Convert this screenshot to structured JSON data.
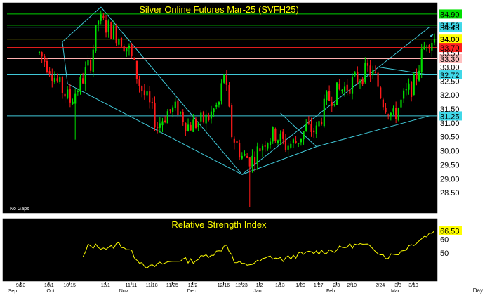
{
  "chart_data": [
    {
      "type": "candlestick",
      "title": "Silver Online Futures Mar-25 (SVFH25)",
      "note": "No Gaps",
      "ylim": [
        27.9,
        35.15
      ],
      "y_ticks": [
        "28.50",
        "29.00",
        "29.50",
        "30.00",
        "30.50",
        "31.00",
        "31.50",
        "32.00",
        "32.50",
        "33.00",
        "33.50",
        "34.00",
        "34.50"
      ],
      "x_tick_labels": [
        "9/23",
        "10/1",
        "10/15",
        "11/1",
        "11/11",
        "11/18",
        "11/25",
        "12/2",
        "12/16",
        "12/23",
        "1/2",
        "1/13",
        "1/20",
        "1/27",
        "2/3",
        "2/10",
        "2/24",
        "3/3",
        "3/10"
      ],
      "month_labels": [
        "Sep",
        "Oct",
        "Nov",
        "Dec",
        "Jan",
        "Feb",
        "Mar"
      ],
      "corner_label": "Day",
      "price_levels": [
        {
          "value": 34.9,
          "label": "34.90",
          "color": "#00d000",
          "label_bg": "#00e000",
          "label_fg": "#000000"
        },
        {
          "value": 34.5,
          "label": "34.50",
          "color": "#00d000",
          "label_bg": "#ffffff",
          "label_fg": "#000000"
        },
        {
          "value": 34.43,
          "label": "34.43",
          "color": "#40c8d8",
          "label_bg": "#40d8e8",
          "label_fg": "#000000"
        },
        {
          "value": 34.0,
          "label": "34.00",
          "color": "#ffff00",
          "label_bg": "#ffff00",
          "label_fg": "#000000"
        },
        {
          "value": 33.7,
          "label": "33.70",
          "color": "#ff2020",
          "label_bg": "#ff2020",
          "label_fg": "#000000"
        },
        {
          "value": 33.3,
          "label": "33.30",
          "color": "#ffb0b0",
          "label_bg": "#ffc0c0",
          "label_fg": "#000000"
        },
        {
          "value": 32.72,
          "label": "32.72",
          "color": "#40c8d8",
          "label_bg": "#40d8e8",
          "label_fg": "#000000"
        },
        {
          "value": 31.25,
          "label": "31.25",
          "color": "#40c8d8",
          "label_bg": "#40d8e8",
          "label_fg": "#000000"
        }
      ],
      "trendlines": [
        {
          "from": [
            9,
            33.9
          ],
          "to": [
            24,
            35.15
          ],
          "color": "#40c8d8"
        },
        {
          "from": [
            24,
            35.15
          ],
          "to": [
            79,
            29.15
          ],
          "color": "#40c8d8"
        },
        {
          "from": [
            9,
            33.9
          ],
          "to": [
            11,
            32.4
          ],
          "color": "#40c8d8"
        },
        {
          "from": [
            11,
            32.4
          ],
          "to": [
            79,
            29.15
          ],
          "color": "#40c8d8"
        },
        {
          "from": [
            79,
            29.15
          ],
          "to": [
            152,
            34.43
          ],
          "color": "#40c8d8"
        },
        {
          "from": [
            79,
            29.15
          ],
          "to": [
            108,
            30.15
          ],
          "color": "#40c8d8"
        },
        {
          "from": [
            108,
            30.15
          ],
          "to": [
            152,
            31.25
          ],
          "color": "#40c8d8"
        },
        {
          "from": [
            94,
            31.35
          ],
          "to": [
            108,
            30.15
          ],
          "color": "#40c8d8"
        },
        {
          "from": [
            132,
            33.0
          ],
          "to": [
            152,
            32.72
          ],
          "color": "#40c8d8"
        }
      ]
    },
    {
      "type": "line",
      "title": "Relative Strength Index",
      "ylim": [
        30,
        75
      ],
      "y_ticks": [
        "60",
        "50"
      ],
      "last_value": "66.53",
      "color": "#ffff00"
    }
  ],
  "colors": {
    "background": "#000000",
    "panel_border": "#ffffff",
    "up_candle": "#00e000",
    "down_candle": "#ff1a1a",
    "title_text": "#ffff00",
    "axis_text": "#000000"
  }
}
